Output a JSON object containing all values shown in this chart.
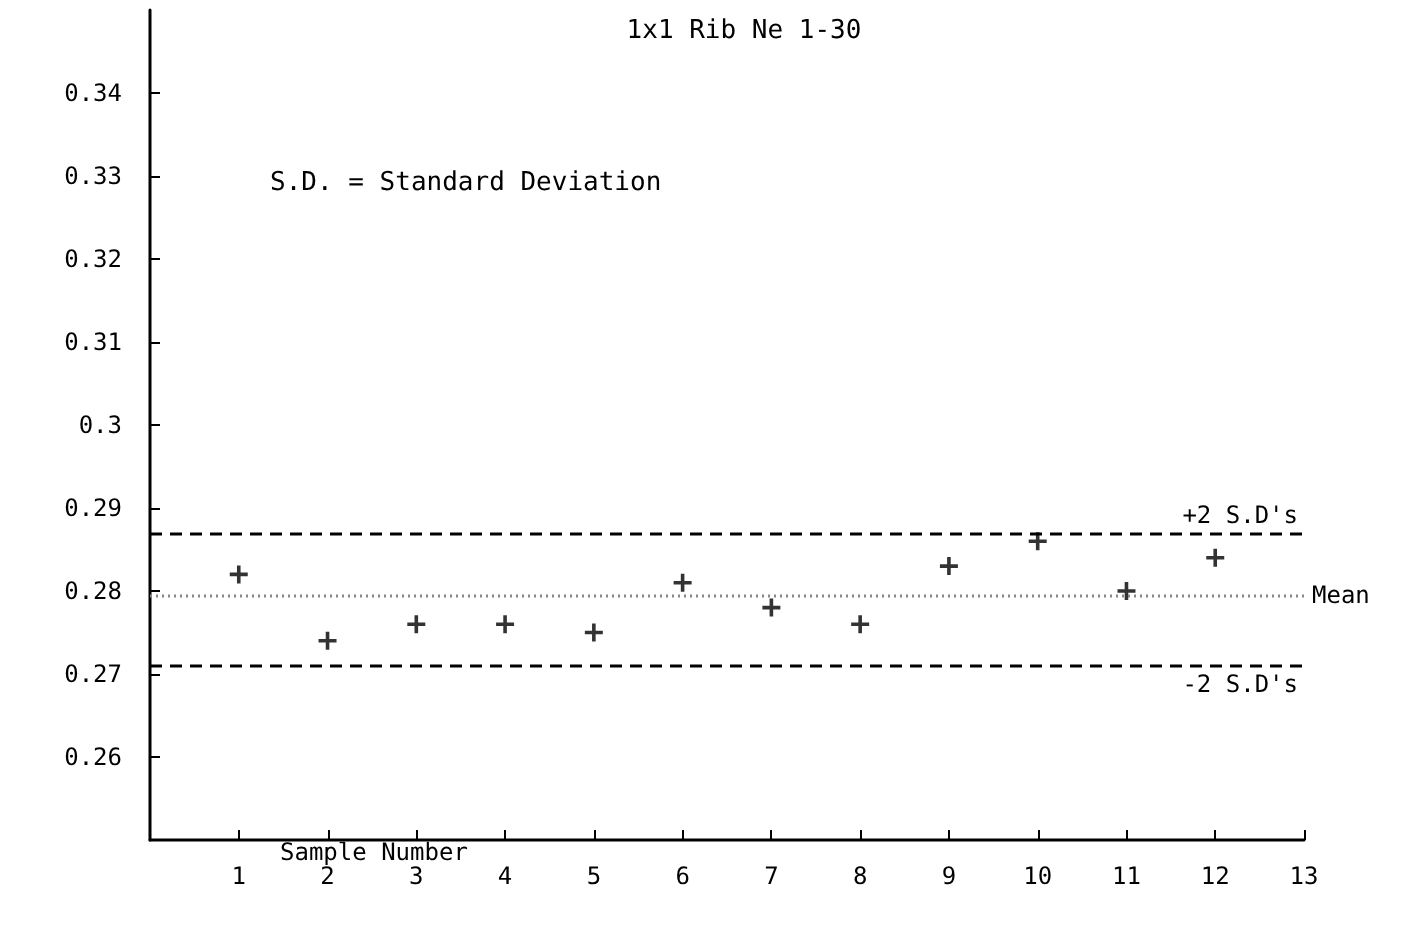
{
  "chart_data": {
    "type": "scatter",
    "title": "1x1 Rib Ne 1-30",
    "xlabel": "Sample Number",
    "annotations": [
      "S.D. = Standard Deviation"
    ],
    "x": [
      1,
      2,
      3,
      4,
      5,
      6,
      7,
      8,
      9,
      10,
      11,
      12
    ],
    "series": [
      {
        "color": "#000000",
        "values": [
          0.282,
          0.274,
          0.276,
          0.276,
          0.275,
          0.281,
          0.278,
          0.276,
          0.283,
          0.286,
          0.28,
          0.284
        ]
      }
    ],
    "marker": "cross",
    "grid": false,
    "xlim": [
      0,
      13
    ],
    "xticks": [
      1,
      2,
      3,
      4,
      5,
      6,
      7,
      8,
      9,
      10,
      11,
      12,
      13
    ],
    "ylim": [
      0.25,
      0.35
    ],
    "yticks": [
      0.26,
      0.27,
      0.28,
      0.29,
      0.3,
      0.31,
      0.32,
      0.33,
      0.34
    ],
    "ref_lines": [
      {
        "axis": "y",
        "value": 0.287,
        "label": "+2 S.D's",
        "line_style": "dashed",
        "color": "#000000"
      },
      {
        "axis": "y",
        "value": 0.2795,
        "label": "Mean",
        "line_style": "dotted",
        "color": "#888888"
      },
      {
        "axis": "y",
        "value": 0.271,
        "label": "-2 S.D's",
        "line_style": "dashed",
        "color": "#000000"
      }
    ]
  }
}
